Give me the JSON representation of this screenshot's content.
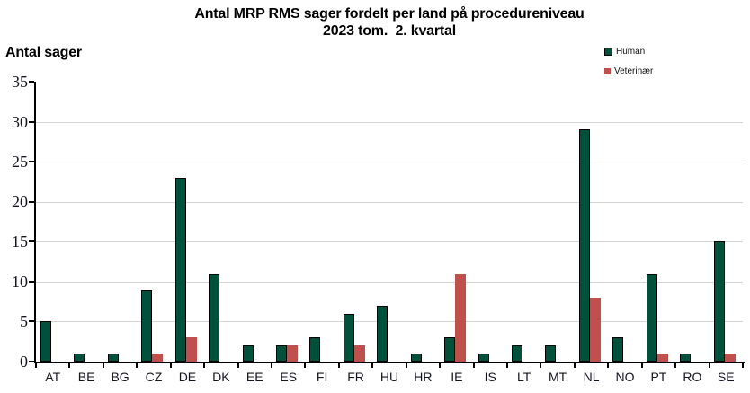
{
  "title": {
    "line1": "Antal MRP RMS sager fordelt per land på procedureniveau",
    "line2": "2023 tom.  2. kvartal"
  },
  "y_axis_title": "Antal sager",
  "legend": {
    "position": "top-right",
    "items": [
      {
        "label": "Human",
        "color": "#00513C"
      },
      {
        "label": "Veterinær",
        "color": "#C0504D"
      }
    ]
  },
  "colors": {
    "human_bar": "#00513C",
    "veterinaer_bar": "#C0504D",
    "gridline": "#D4D4D4",
    "axis": "#000000",
    "background": "#FFFFFF"
  },
  "chart_data": {
    "type": "bar",
    "title": "Antal MRP RMS sager fordelt per land på procedureniveau 2023 tom. 2. kvartal",
    "xlabel": "",
    "ylabel": "Antal sager",
    "categories": [
      "AT",
      "BE",
      "BG",
      "CZ",
      "DE",
      "DK",
      "EE",
      "ES",
      "FI",
      "FR",
      "HU",
      "HR",
      "IE",
      "IS",
      "LT",
      "MT",
      "NL",
      "NO",
      "PT",
      "RO",
      "SE"
    ],
    "series": [
      {
        "name": "Human",
        "color": "#00513C",
        "values": [
          5,
          1,
          1,
          9,
          23,
          11,
          2,
          2,
          3,
          6,
          7,
          1,
          3,
          1,
          2,
          2,
          29,
          3,
          11,
          1,
          15
        ]
      },
      {
        "name": "Veterinær",
        "color": "#C0504D",
        "values": [
          0,
          0,
          0,
          1,
          3,
          0,
          0,
          2,
          0,
          2,
          0,
          0,
          11,
          0,
          0,
          0,
          8,
          0,
          1,
          0,
          1
        ]
      }
    ],
    "ylim": [
      0,
      35
    ],
    "ytick_step": 5,
    "yticks": [
      0,
      5,
      10,
      15,
      20,
      25,
      30,
      35
    ],
    "grid": true,
    "legend_position": "top-right"
  }
}
